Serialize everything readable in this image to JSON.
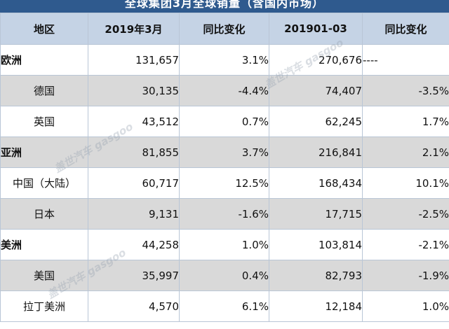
{
  "banner": {
    "title": "全球集团3月全球销量（含国内市场）"
  },
  "table": {
    "headers": [
      "地区",
      "2019年3月",
      "同比变化",
      "201901-03",
      "同比变化"
    ],
    "rows": [
      {
        "label": "欧洲",
        "level": "region",
        "shaded": false,
        "mar": "131,657",
        "mar_yoy": "3.1%",
        "mar_neg": false,
        "ytd": "270,676",
        "ytd_yoy": "----",
        "ytd_neg": false
      },
      {
        "label": "德国",
        "level": "country",
        "shaded": true,
        "mar": "30,135",
        "mar_yoy": "-4.4%",
        "mar_neg": true,
        "ytd": "74,407",
        "ytd_yoy": "-3.5%",
        "ytd_neg": true
      },
      {
        "label": "英国",
        "level": "country",
        "shaded": false,
        "mar": "43,512",
        "mar_yoy": "0.7%",
        "mar_neg": false,
        "ytd": "62,245",
        "ytd_yoy": "1.7%",
        "ytd_neg": false
      },
      {
        "label": "亚洲",
        "level": "region",
        "shaded": true,
        "mar": "81,855",
        "mar_yoy": "3.7%",
        "mar_neg": false,
        "ytd": "216,841",
        "ytd_yoy": "2.1%",
        "ytd_neg": false
      },
      {
        "label": "中国（大陆）",
        "level": "country",
        "shaded": false,
        "mar": "60,717",
        "mar_yoy": "12.5%",
        "mar_neg": false,
        "ytd": "168,434",
        "ytd_yoy": "10.1%",
        "ytd_neg": false
      },
      {
        "label": "日本",
        "level": "country",
        "shaded": true,
        "mar": "9,131",
        "mar_yoy": "-1.6%",
        "mar_neg": true,
        "ytd": "17,715",
        "ytd_yoy": "-2.5%",
        "ytd_neg": true
      },
      {
        "label": "美洲",
        "level": "region",
        "shaded": false,
        "mar": "44,258",
        "mar_yoy": "1.0%",
        "mar_neg": false,
        "ytd": "103,814",
        "ytd_yoy": "-2.1%",
        "ytd_neg": true
      },
      {
        "label": "美国",
        "level": "country",
        "shaded": true,
        "mar": "35,997",
        "mar_yoy": "0.4%",
        "mar_neg": false,
        "ytd": "82,793",
        "ytd_yoy": "-1.9%",
        "ytd_neg": true
      },
      {
        "label": "拉丁美洲",
        "level": "country",
        "shaded": false,
        "mar": "4,570",
        "mar_yoy": "6.1%",
        "mar_neg": false,
        "ytd": "12,184",
        "ytd_yoy": "1.0%",
        "ytd_neg": false
      }
    ]
  },
  "watermark": {
    "text": "盖世汽车 gasgoo"
  },
  "colors": {
    "header_bg": "#c5d3e5",
    "shaded_row": "#d9d9d9",
    "negative": "#e0201b",
    "banner_bg": "#2f5a8e"
  }
}
